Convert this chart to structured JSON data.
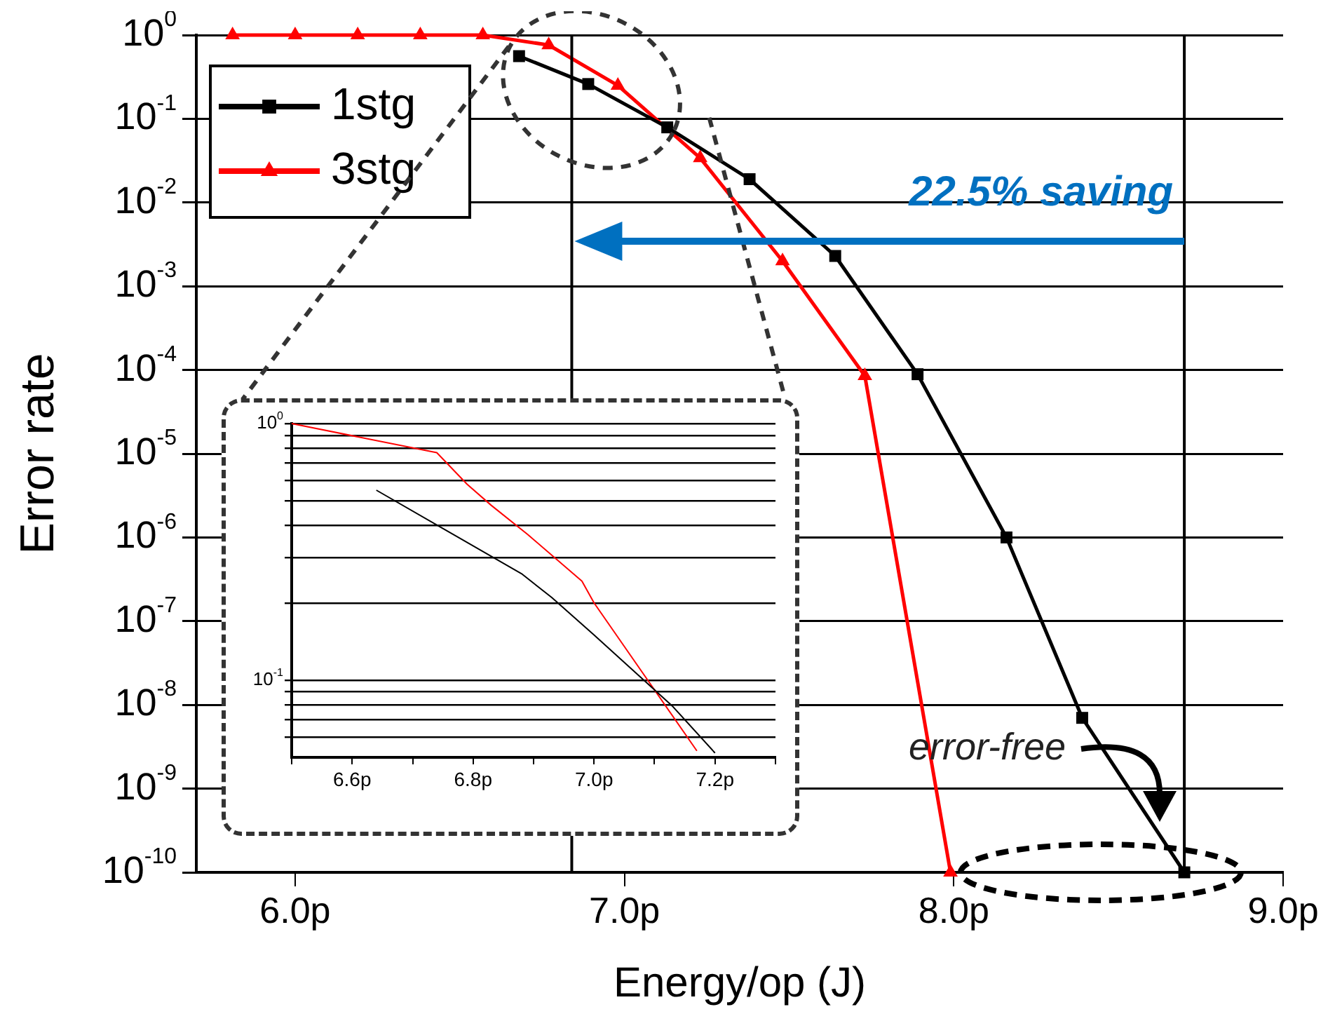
{
  "chart_data": [
    {
      "type": "line",
      "xlabel": "Energy/op (J)",
      "ylabel": "Error rate",
      "log": "y",
      "grid": "y",
      "legend": "top left",
      "xlim": [
        5.7,
        9.0
      ],
      "xticks": [
        {
          "value": 6,
          "label": "6.0p"
        },
        {
          "value": 7,
          "label": "7.0p"
        },
        {
          "value": 8,
          "label": "8.0p"
        },
        {
          "value": 9,
          "label": "9.0p"
        }
      ],
      "ylim": [
        1e-10,
        1
      ],
      "yticks": [
        {
          "value": 1e-10,
          "label": "10$^{-10}$"
        },
        {
          "value": 1e-09,
          "label": "10$^{-9}$"
        },
        {
          "value": 1e-08,
          "label": "10$^{-8}$"
        },
        {
          "value": 1e-07,
          "label": "10$^{-7}$"
        },
        {
          "value": 1e-06,
          "label": "10$^{-6}$"
        },
        {
          "value": 1e-05,
          "label": "10$^{-5}$"
        },
        {
          "value": 0.0001,
          "label": "10$^{-4}$"
        },
        {
          "value": 0.001,
          "label": "10$^{-3}$"
        },
        {
          "value": 0.01,
          "label": "10$^{-2}$"
        },
        {
          "value": 0.1,
          "label": "10$^{-1}$"
        },
        {
          "value": 1,
          "label": "10$^{0}$"
        }
      ],
      "series": [
        {
          "name": "1stg",
          "color": "#000000",
          "marker": "square",
          "x": [
            6.68,
            6.89,
            7.13,
            7.38,
            7.64,
            7.89,
            8.16,
            8.39,
            8.7
          ],
          "values": [
            0.56,
            0.26,
            0.079,
            0.019,
            0.0023,
            8.9e-05,
            1e-06,
            7e-09,
            1e-10
          ]
        },
        {
          "name": "3stg",
          "color": "#ff0000",
          "marker": "triangle",
          "x": [
            5.81,
            6.0,
            6.19,
            6.38,
            6.57,
            6.77,
            6.98,
            7.23,
            7.48,
            7.73,
            7.99
          ],
          "values": [
            1,
            1,
            1,
            1,
            1,
            0.76,
            0.25,
            0.034,
            0.002,
            8.5e-05,
            1e-10
          ]
        }
      ],
      "ref_lines": [
        {
          "axis": "x",
          "value": 6.84
        },
        {
          "axis": "x",
          "value": 8.7
        }
      ],
      "annotations": [
        "22.5% saving",
        "error-free"
      ]
    },
    {
      "type": "line",
      "log": "y",
      "grid": "y",
      "marker": "none",
      "xlim": [
        6.5,
        7.3
      ],
      "xticks": [
        {
          "value": 6.5,
          "label": null
        },
        {
          "value": 6.6,
          "label": "6.6p"
        },
        {
          "value": 6.7,
          "label": null
        },
        {
          "value": 6.8,
          "label": "6.8p"
        },
        {
          "value": 6.9,
          "label": null
        },
        {
          "value": 7.0,
          "label": "7.0p"
        },
        {
          "value": 7.1,
          "label": null
        },
        {
          "value": 7.2,
          "label": "7.2p"
        },
        {
          "value": 7.3,
          "label": null
        }
      ],
      "ylim": [
        0.05,
        1
      ],
      "yticks": [
        {
          "value": 1,
          "label": "10$^{0}$"
        },
        {
          "value": 0.9,
          "label": null
        },
        {
          "value": 0.8,
          "label": null
        },
        {
          "value": 0.7,
          "label": null
        },
        {
          "value": 0.6,
          "label": null
        },
        {
          "value": 0.5,
          "label": null
        },
        {
          "value": 0.4,
          "label": null
        },
        {
          "value": 0.3,
          "label": null
        },
        {
          "value": 0.2,
          "label": null
        },
        {
          "value": 0.1,
          "label": "10$^{-1}$"
        },
        {
          "value": 0.09,
          "label": null
        },
        {
          "value": 0.08,
          "label": null
        },
        {
          "value": 0.07,
          "label": null
        },
        {
          "value": 0.06,
          "label": null
        }
      ],
      "series": [
        {
          "color": "#000000",
          "x": [
            6.64,
            6.75,
            6.88,
            6.93,
            7.0,
            7.13,
            7.2
          ],
          "values": [
            0.55,
            0.39,
            0.26,
            0.21,
            0.15,
            0.079,
            0.052
          ]
        },
        {
          "color": "#ff0000",
          "x": [
            6.5,
            6.74,
            6.79,
            6.83,
            6.89,
            6.98,
            7.0,
            7.09,
            7.17
          ],
          "values": [
            1,
            0.77,
            0.58,
            0.48,
            0.37,
            0.243,
            0.2,
            0.099,
            0.053
          ]
        }
      ]
    }
  ]
}
